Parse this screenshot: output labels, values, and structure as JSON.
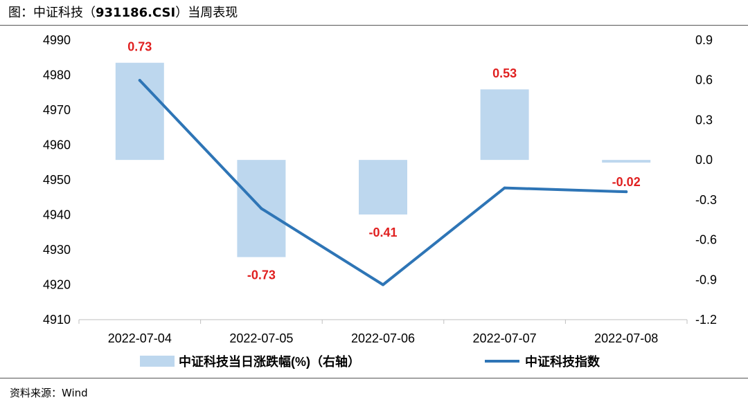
{
  "header": {
    "title_prefix": "图：中证科技（",
    "title_code": "931186.CSI",
    "title_suffix": "）当周表现"
  },
  "footer": {
    "source": "资料来源：Wind"
  },
  "colors": {
    "bar": "#bdd7ee",
    "line": "#2e75b6",
    "label": "#e02020",
    "axis": "#bfbfbf"
  },
  "chart_data": {
    "type": "bar+line",
    "categories": [
      "2022-07-04",
      "2022-07-05",
      "2022-07-06",
      "2022-07-07",
      "2022-07-08"
    ],
    "series": [
      {
        "name": "中证科技当日涨跌幅(%)（右轴）",
        "type": "bar",
        "axis": "right",
        "values": [
          0.73,
          -0.73,
          -0.41,
          0.53,
          -0.02
        ],
        "data_labels": [
          "0.73",
          "-0.73",
          "-0.41",
          "0.53",
          "-0.02"
        ]
      },
      {
        "name": "中证科技指数",
        "type": "line",
        "axis": "left",
        "values": [
          4978.5,
          4941.8,
          4920.0,
          4947.7,
          4946.6
        ]
      }
    ],
    "y_left": {
      "lim": [
        4910,
        4990
      ],
      "ticks": [
        "4990",
        "4980",
        "4970",
        "4960",
        "4950",
        "4940",
        "4930",
        "4920",
        "4910"
      ]
    },
    "y_right": {
      "lim": [
        -1.2,
        0.9
      ],
      "ticks": [
        "0.9",
        "0.6",
        "0.3",
        "0.0",
        "-0.3",
        "-0.6",
        "-0.9",
        "-1.2"
      ]
    },
    "legend": "bottom",
    "grid": false
  }
}
